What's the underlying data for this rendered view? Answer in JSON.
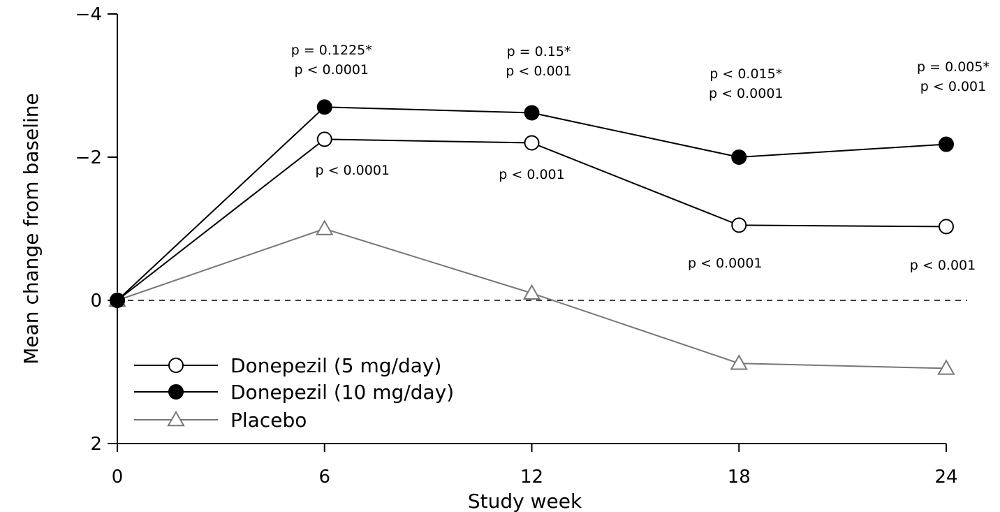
{
  "chart_data": {
    "type": "line",
    "xlabel": "Study week",
    "ylabel": "Mean change from baseline",
    "x": [
      0,
      6,
      12,
      18,
      24
    ],
    "xticks": [
      "0",
      "6",
      "12",
      "18",
      "24"
    ],
    "xlim": [
      0,
      24
    ],
    "ylim": [
      -4,
      2
    ],
    "yinverted": true,
    "yticks": [
      -4,
      -2,
      0,
      2
    ],
    "ytick_labels": [
      "−4",
      "−2",
      "0",
      "2"
    ],
    "zero_line": "dashed",
    "grid": false,
    "legend_position": "bottom-left",
    "series": [
      {
        "name": "Donepezil (5 mg/day)",
        "marker": "open-circle",
        "color": "#000000",
        "values": [
          0,
          -2.25,
          -2.2,
          -1.05,
          -1.03
        ]
      },
      {
        "name": "Donepezil (10 mg/day)",
        "marker": "filled-circle",
        "color": "#000000",
        "values": [
          0,
          -2.7,
          -2.62,
          -2.0,
          -2.18
        ]
      },
      {
        "name": "Placebo",
        "marker": "open-triangle",
        "color": "#777777",
        "values": [
          0,
          -1.0,
          -0.1,
          0.88,
          0.95
        ]
      }
    ],
    "annotations_top": [
      {
        "x": 6,
        "lines": [
          "p = 0.1225*",
          "p < 0.0001"
        ]
      },
      {
        "x": 12,
        "lines": [
          "p = 0.15*",
          "p < 0.001"
        ]
      },
      {
        "x": 18,
        "lines": [
          "p < 0.015*",
          "p < 0.0001"
        ]
      },
      {
        "x": 24,
        "lines": [
          "p = 0.005*",
          "p < 0.001"
        ]
      }
    ],
    "annotations_mid": [
      {
        "x": 6,
        "text": "p < 0.0001"
      },
      {
        "x": 12,
        "text": "p < 0.001"
      },
      {
        "x": 18,
        "text": "p < 0.0001"
      },
      {
        "x": 24,
        "text": "p < 0.001"
      }
    ]
  }
}
